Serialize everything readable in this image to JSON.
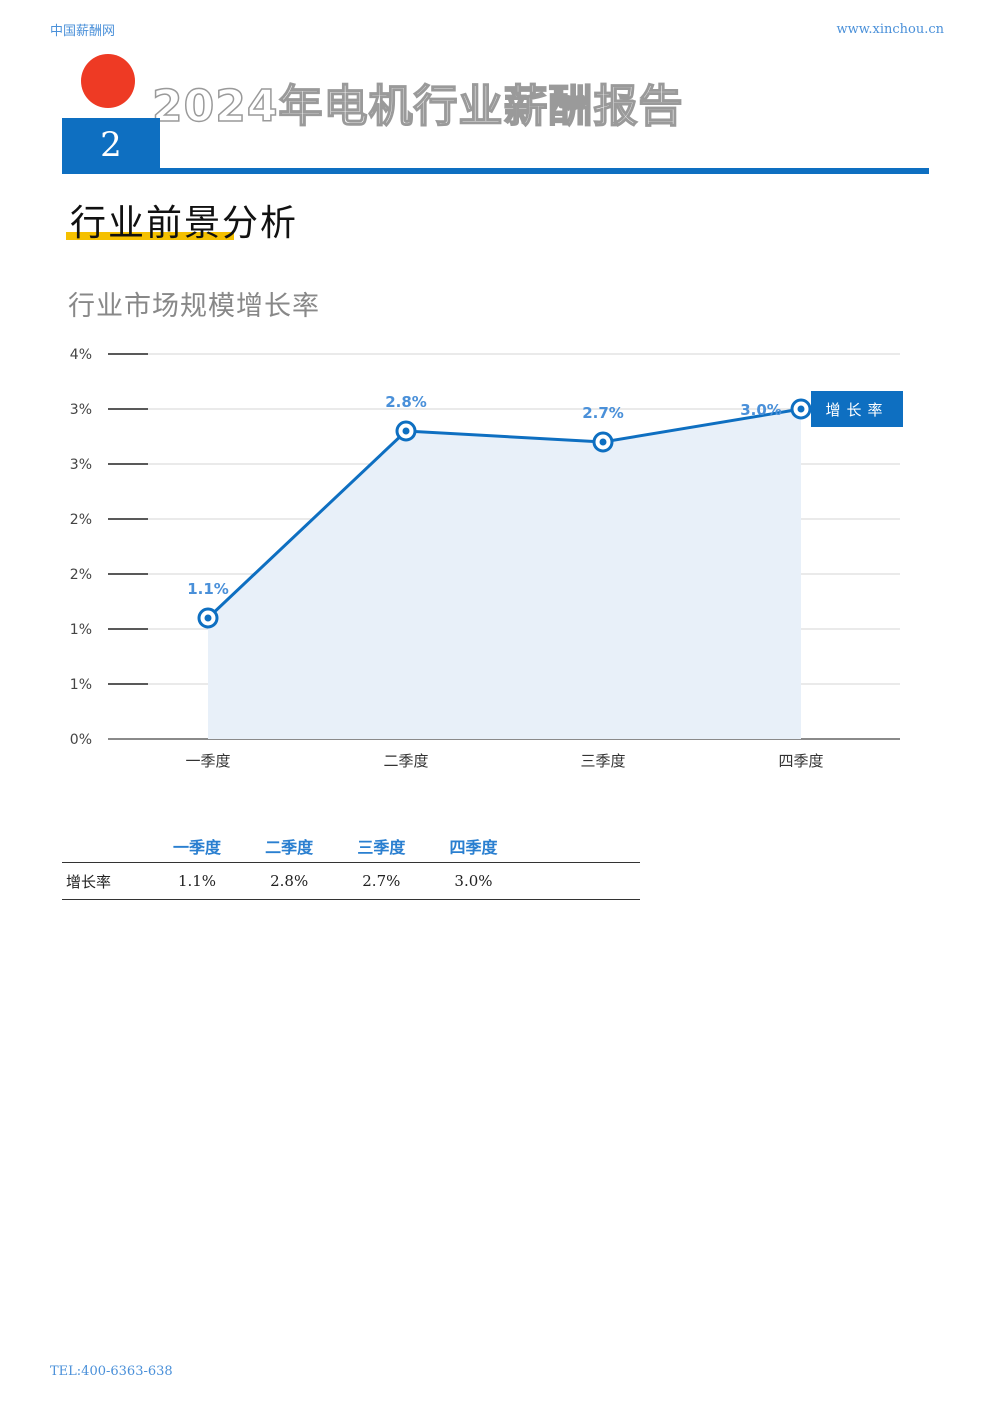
{
  "header": {
    "site_name": "中国薪酬网",
    "site_url": "www.xinchou.cn"
  },
  "report": {
    "title": "2024年电机行业薪酬报告",
    "section_number": "2",
    "section_title": "行业前景分析"
  },
  "chart_data": {
    "type": "area",
    "title": "行业市场规模增长率",
    "categories": [
      "一季度",
      "二季度",
      "三季度",
      "四季度"
    ],
    "series": [
      {
        "name": "增长率",
        "values": [
          1.1,
          2.8,
          2.7,
          3.0
        ],
        "labels": [
          "1.1%",
          "2.8%",
          "2.7%",
          "3.0%"
        ]
      }
    ],
    "y_tick_labels": [
      "0%",
      "1%",
      "1%",
      "2%",
      "2%",
      "3%",
      "3%",
      "4%"
    ],
    "ylim": [
      0,
      3.5
    ],
    "grid": true,
    "legend": "right of last point",
    "colors": {
      "line": "#0e6fc1",
      "fill": "#e8f0f9",
      "label": "#4a90d9"
    }
  },
  "table": {
    "headers": [
      "",
      "一季度",
      "二季度",
      "三季度",
      "四季度",
      ""
    ],
    "rows": [
      [
        "增长率",
        "1.1%",
        "2.8%",
        "2.7%",
        "3.0%",
        ""
      ]
    ]
  },
  "footer": {
    "tel": "TEL:400-6363-638"
  }
}
